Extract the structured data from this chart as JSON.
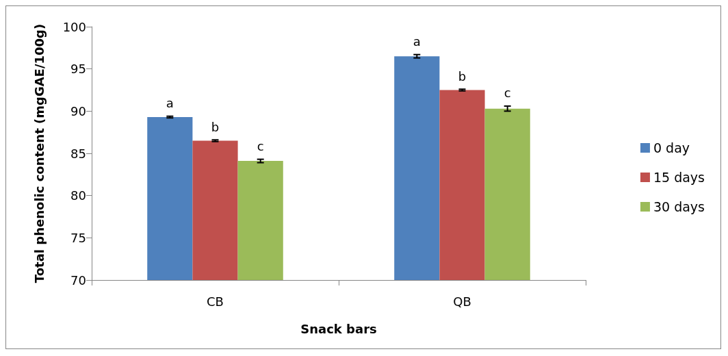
{
  "chart_data": {
    "type": "bar",
    "xlabel": "Snack bars",
    "ylabel": "Total phenolic content (mgGAE/100g)",
    "categories": [
      "CB",
      "QB"
    ],
    "series": [
      {
        "name": "0 day",
        "color": "#4f81bd",
        "values": [
          89.3,
          96.5
        ],
        "errors": [
          0.1,
          0.2
        ]
      },
      {
        "name": "15 days",
        "color": "#c0504d",
        "values": [
          86.5,
          92.5
        ],
        "errors": [
          0.1,
          0.1
        ]
      },
      {
        "name": "30 days",
        "color": "#9bbb59",
        "values": [
          84.1,
          90.3
        ],
        "errors": [
          0.2,
          0.3
        ]
      }
    ],
    "annotations": [
      "a",
      "b",
      "c",
      "a",
      "b",
      "c"
    ],
    "ylim": [
      70,
      100
    ],
    "yticks": [
      70,
      75,
      80,
      85,
      90,
      95,
      100
    ],
    "grid": false,
    "legend": "right"
  }
}
